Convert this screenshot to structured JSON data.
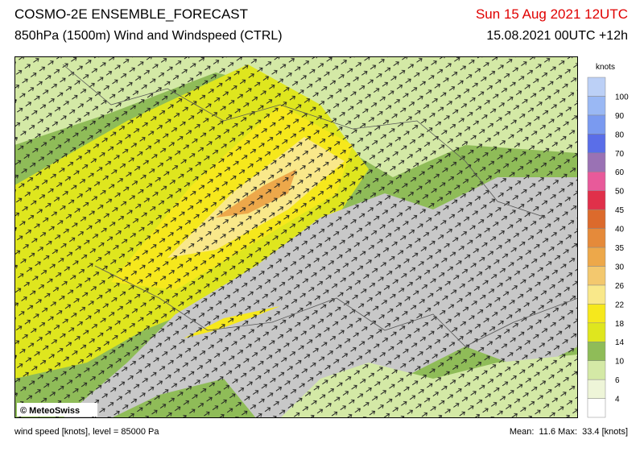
{
  "header": {
    "title": "COSMO-2E ENSEMBLE_FORECAST",
    "subtitle": "850hPa (1500m) Wind and Windspeed (CTRL)",
    "valid_time": "Sun 15 Aug 2021 12UTC",
    "run_time": "15.08.2021 00UTC +12h"
  },
  "map": {
    "credit": "© MeteoSwiss"
  },
  "legend": {
    "title": "knots",
    "labels": [
      4,
      6,
      10,
      14,
      18,
      22,
      26,
      30,
      35,
      40,
      45,
      50,
      60,
      70,
      80,
      90,
      100
    ],
    "colors": [
      "#ffffff",
      "#eef5d8",
      "#d4e9a6",
      "#8fbc58",
      "#dfe61e",
      "#f6e81c",
      "#f9e88a",
      "#f3c86e",
      "#eda84a",
      "#e58a3a",
      "#dc6a2c",
      "#e0304a",
      "#e85a9a",
      "#9a72b4",
      "#5a6ee8",
      "#7a9af0",
      "#9ab8f4",
      "#bcd0f6"
    ]
  },
  "footer": {
    "left": "wind speed [knots], level = 85000 Pa",
    "right": "Mean:  11.6 Max:  33.4 [knots]"
  }
}
